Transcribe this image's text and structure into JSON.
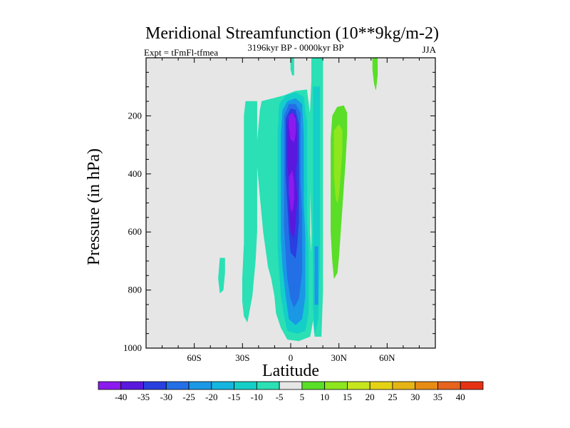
{
  "chart_data": {
    "type": "heatmap",
    "title": "Meridional Streamfunction (10**9kg/m-2)",
    "subtitle": "3196kyr BP - 0000kyr BP",
    "left_annotation": "Expt = tFmFl-tfmea",
    "right_annotation": "JJA",
    "xlabel": "Latitude",
    "ylabel": "Pressure (in hPa)",
    "xlim": [
      -90,
      90
    ],
    "ylim": [
      0,
      1000
    ],
    "y_inverted": true,
    "x_ticks": [
      {
        "value": -60,
        "label": "60S"
      },
      {
        "value": -30,
        "label": "30S"
      },
      {
        "value": 0,
        "label": "0"
      },
      {
        "value": 30,
        "label": "30N"
      },
      {
        "value": 60,
        "label": "60N"
      }
    ],
    "y_ticks": [
      {
        "value": 200,
        "label": "200"
      },
      {
        "value": 400,
        "label": "400"
      },
      {
        "value": 600,
        "label": "600"
      },
      {
        "value": 800,
        "label": "800"
      },
      {
        "value": 1000,
        "label": "1000"
      }
    ],
    "colorbar": {
      "labels": [
        "-40",
        "-35",
        "-30",
        "-25",
        "-20",
        "-15",
        "-10",
        "-5",
        "5",
        "10",
        "15",
        "20",
        "25",
        "30",
        "35",
        "40"
      ],
      "colors": [
        "#8c1aee",
        "#5a18de",
        "#2a3fe0",
        "#2370e6",
        "#1a98e6",
        "#14b6e0",
        "#14cfc8",
        "#2ae0b4",
        "#e6e6e6",
        "#5ade28",
        "#8ee61e",
        "#c6e61e",
        "#e6d214",
        "#e6b414",
        "#e68c14",
        "#e6641e",
        "#e63214"
      ]
    },
    "regions": [
      {
        "level": -10,
        "color": "#2ae0b4",
        "points": [
          [
            -18,
            150
          ],
          [
            -11,
            140
          ],
          [
            -4,
            130
          ],
          [
            3,
            115
          ],
          [
            10,
            110
          ],
          [
            12,
            200
          ],
          [
            12,
            300
          ],
          [
            12,
            400
          ],
          [
            12,
            500
          ],
          [
            12,
            600
          ],
          [
            13,
            700
          ],
          [
            13,
            800
          ],
          [
            14,
            900
          ],
          [
            12,
            960
          ],
          [
            5,
            975
          ],
          [
            -2,
            970
          ],
          [
            -6,
            930
          ],
          [
            -9,
            880
          ],
          [
            -10,
            820
          ],
          [
            -12,
            760
          ],
          [
            -14,
            720
          ],
          [
            -15,
            680
          ],
          [
            -16,
            640
          ],
          [
            -17,
            600
          ],
          [
            -18,
            540
          ],
          [
            -19,
            480
          ],
          [
            -20,
            420
          ],
          [
            -21,
            360
          ],
          [
            -21,
            300
          ],
          [
            -20,
            240
          ],
          [
            -19,
            180
          ]
        ]
      },
      {
        "level": -10,
        "color": "#2ae0b4",
        "points": [
          [
            -28,
            150
          ],
          [
            -21,
            150
          ],
          [
            -21,
            300
          ],
          [
            -21,
            450
          ],
          [
            -21,
            600
          ],
          [
            -22,
            700
          ],
          [
            -24,
            820
          ],
          [
            -26,
            880
          ],
          [
            -27,
            910
          ],
          [
            -29,
            890
          ],
          [
            -30,
            840
          ],
          [
            -30,
            760
          ],
          [
            -29,
            640
          ],
          [
            -29,
            480
          ],
          [
            -29,
            320
          ],
          [
            -29,
            200
          ]
        ]
      },
      {
        "level": -10,
        "color": "#2ae0b4",
        "points": [
          [
            13,
            0
          ],
          [
            20,
            0
          ],
          [
            20,
            200
          ],
          [
            20,
            400
          ],
          [
            20,
            600
          ],
          [
            20,
            800
          ],
          [
            19,
            960
          ],
          [
            15,
            960
          ],
          [
            14,
            900
          ],
          [
            13,
            800
          ],
          [
            13,
            600
          ],
          [
            12,
            400
          ],
          [
            12,
            200
          ],
          [
            13,
            80
          ]
        ]
      },
      {
        "level": -10,
        "color": "#2ae0b4",
        "points": [
          [
            0,
            0
          ],
          [
            2,
            0
          ],
          [
            2,
            60
          ],
          [
            1,
            60
          ],
          [
            0,
            40
          ]
        ]
      },
      {
        "level": -15,
        "color": "#14cfc8",
        "points": [
          [
            -7,
            160
          ],
          [
            -3,
            130
          ],
          [
            3,
            120
          ],
          [
            8,
            135
          ],
          [
            10,
            220
          ],
          [
            10,
            340
          ],
          [
            10,
            460
          ],
          [
            10,
            560
          ],
          [
            11,
            660
          ],
          [
            11,
            760
          ],
          [
            11,
            880
          ],
          [
            9,
            940
          ],
          [
            4,
            950
          ],
          [
            -2,
            940
          ],
          [
            -4,
            890
          ],
          [
            -6,
            820
          ],
          [
            -7,
            740
          ],
          [
            -8,
            660
          ],
          [
            -8,
            560
          ],
          [
            -8,
            460
          ],
          [
            -8,
            360
          ],
          [
            -8,
            260
          ]
        ]
      },
      {
        "level": -15,
        "color": "#14cfc8",
        "points": [
          [
            14,
            100
          ],
          [
            18,
            100
          ],
          [
            18,
            300
          ],
          [
            18,
            500
          ],
          [
            18,
            700
          ],
          [
            17,
            900
          ],
          [
            15,
            950
          ],
          [
            14,
            850
          ],
          [
            14,
            600
          ],
          [
            14,
            300
          ]
        ]
      },
      {
        "level": -20,
        "color": "#1a98e6",
        "points": [
          [
            -5,
            180
          ],
          [
            -2,
            150
          ],
          [
            3,
            140
          ],
          [
            7,
            160
          ],
          [
            8,
            260
          ],
          [
            8,
            380
          ],
          [
            8,
            500
          ],
          [
            9,
            620
          ],
          [
            9,
            720
          ],
          [
            9,
            820
          ],
          [
            7,
            900
          ],
          [
            3,
            920
          ],
          [
            -1,
            900
          ],
          [
            -3,
            820
          ],
          [
            -5,
            720
          ],
          [
            -6,
            620
          ],
          [
            -6,
            500
          ],
          [
            -6,
            380
          ],
          [
            -6,
            260
          ]
        ]
      },
      {
        "level": -20,
        "color": "#1a98e6",
        "points": [
          [
            15,
            650
          ],
          [
            17,
            650
          ],
          [
            17,
            850
          ],
          [
            15,
            850
          ]
        ]
      },
      {
        "level": -25,
        "color": "#2370e6",
        "points": [
          [
            -4,
            200
          ],
          [
            -1,
            160
          ],
          [
            3,
            160
          ],
          [
            6,
            190
          ],
          [
            6,
            300
          ],
          [
            6,
            420
          ],
          [
            7,
            540
          ],
          [
            7,
            640
          ],
          [
            7,
            740
          ],
          [
            5,
            830
          ],
          [
            2,
            860
          ],
          [
            0,
            830
          ],
          [
            -2,
            760
          ],
          [
            -3,
            680
          ],
          [
            -4,
            580
          ],
          [
            -4,
            460
          ],
          [
            -4,
            340
          ]
        ]
      },
      {
        "level": -30,
        "color": "#2a3fe0",
        "points": [
          [
            -3,
            210
          ],
          [
            0,
            175
          ],
          [
            3,
            180
          ],
          [
            5,
            230
          ],
          [
            5,
            330
          ],
          [
            5,
            440
          ],
          [
            5,
            560
          ],
          [
            4,
            640
          ],
          [
            3,
            690
          ],
          [
            0,
            670
          ],
          [
            -1,
            600
          ],
          [
            -2,
            500
          ],
          [
            -3,
            400
          ],
          [
            -3,
            300
          ]
        ]
      },
      {
        "level": -35,
        "color": "#5a18de",
        "points": [
          [
            -2,
            230
          ],
          [
            0,
            190
          ],
          [
            3,
            200
          ],
          [
            4,
            260
          ],
          [
            4,
            340
          ],
          [
            3,
            400
          ],
          [
            4,
            480
          ],
          [
            3,
            560
          ],
          [
            2,
            620
          ],
          [
            0,
            600
          ],
          [
            -1,
            520
          ],
          [
            -1,
            440
          ],
          [
            -2,
            360
          ],
          [
            -2,
            280
          ]
        ]
      },
      {
        "level": -40,
        "color": "#8c1aee",
        "points": [
          [
            -1,
            200
          ],
          [
            1,
            190
          ],
          [
            3,
            210
          ],
          [
            3,
            260
          ],
          [
            2,
            290
          ],
          [
            0,
            280
          ],
          [
            -1,
            240
          ]
        ]
      },
      {
        "level": -40,
        "color": "#8c1aee",
        "points": [
          [
            -1,
            410
          ],
          [
            1,
            390
          ],
          [
            2,
            430
          ],
          [
            2,
            490
          ],
          [
            1,
            530
          ],
          [
            0,
            520
          ],
          [
            -1,
            470
          ]
        ]
      },
      {
        "level": -10,
        "color": "#2ae0b4",
        "points": [
          [
            -44,
            690
          ],
          [
            -41,
            690
          ],
          [
            -41,
            740
          ],
          [
            -42,
            800
          ],
          [
            -44,
            810
          ],
          [
            -45,
            760
          ]
        ]
      },
      {
        "level": 5,
        "color": "#5ade28",
        "points": [
          [
            26,
            200
          ],
          [
            29,
            170
          ],
          [
            33,
            165
          ],
          [
            35,
            190
          ],
          [
            35,
            260
          ],
          [
            34,
            360
          ],
          [
            33,
            440
          ],
          [
            32,
            520
          ],
          [
            31,
            600
          ],
          [
            30,
            680
          ],
          [
            29,
            740
          ],
          [
            27,
            760
          ],
          [
            26,
            700
          ],
          [
            25,
            600
          ],
          [
            25,
            480
          ],
          [
            25,
            380
          ],
          [
            25,
            280
          ]
        ]
      },
      {
        "level": 10,
        "color": "#8ee61e",
        "points": [
          [
            27,
            250
          ],
          [
            30,
            230
          ],
          [
            32,
            250
          ],
          [
            32,
            320
          ],
          [
            31,
            400
          ],
          [
            30,
            470
          ],
          [
            29,
            500
          ],
          [
            28,
            480
          ],
          [
            27,
            400
          ],
          [
            27,
            320
          ]
        ]
      },
      {
        "level": 5,
        "color": "#5ade28",
        "points": [
          [
            51,
            0
          ],
          [
            54,
            0
          ],
          [
            54,
            60
          ],
          [
            53,
            110
          ],
          [
            52,
            90
          ],
          [
            51,
            40
          ]
        ]
      }
    ]
  }
}
